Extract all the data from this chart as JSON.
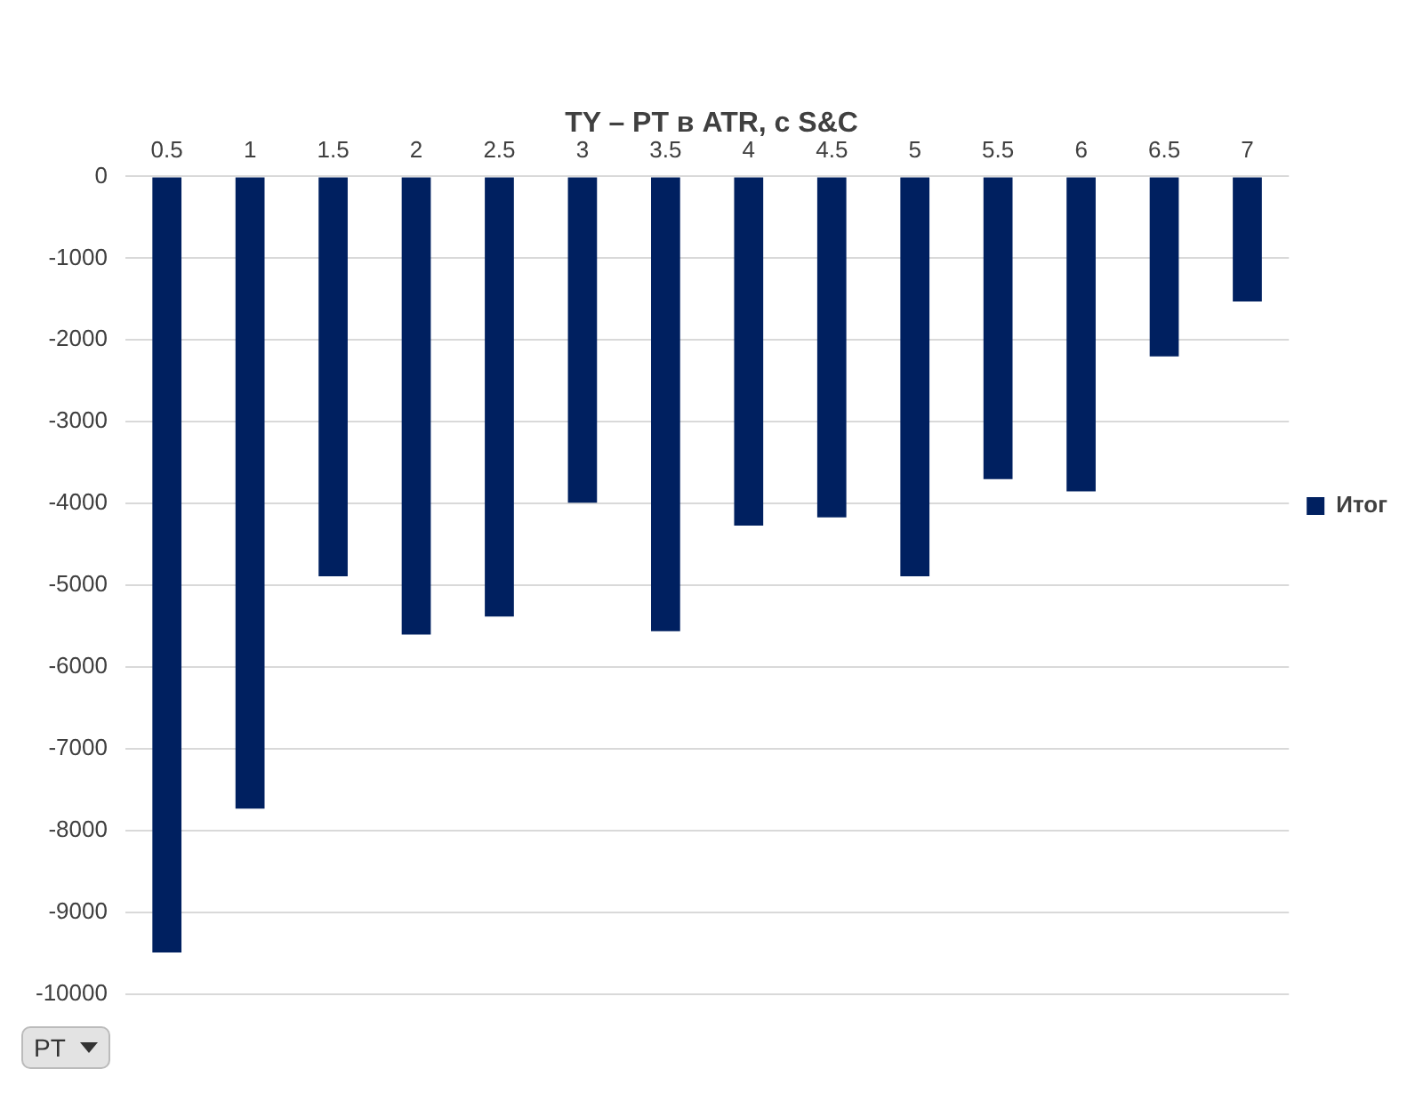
{
  "chart_data": {
    "type": "bar",
    "title": "TY – PT в ATR, с S&C",
    "xlabel": "PT",
    "categories": [
      "0.5",
      "1",
      "1.5",
      "2",
      "2.5",
      "3",
      "3.5",
      "4",
      "4.5",
      "5",
      "5.5",
      "6",
      "6.5",
      "7"
    ],
    "series": [
      {
        "name": "Итог",
        "color": "#002060",
        "values": [
          -9490,
          -7730,
          -4890,
          -5600,
          -5380,
          -3990,
          -5560,
          -4270,
          -4170,
          -4890,
          -3700,
          -3850,
          -2200,
          -1530
        ]
      }
    ],
    "ylim": [
      -10000,
      0
    ],
    "yticks": [
      -10000,
      -9000,
      -8000,
      -7000,
      -6000,
      -5000,
      -4000,
      -3000,
      -2000,
      -1000,
      0
    ],
    "grid": "y",
    "legend": "right"
  }
}
